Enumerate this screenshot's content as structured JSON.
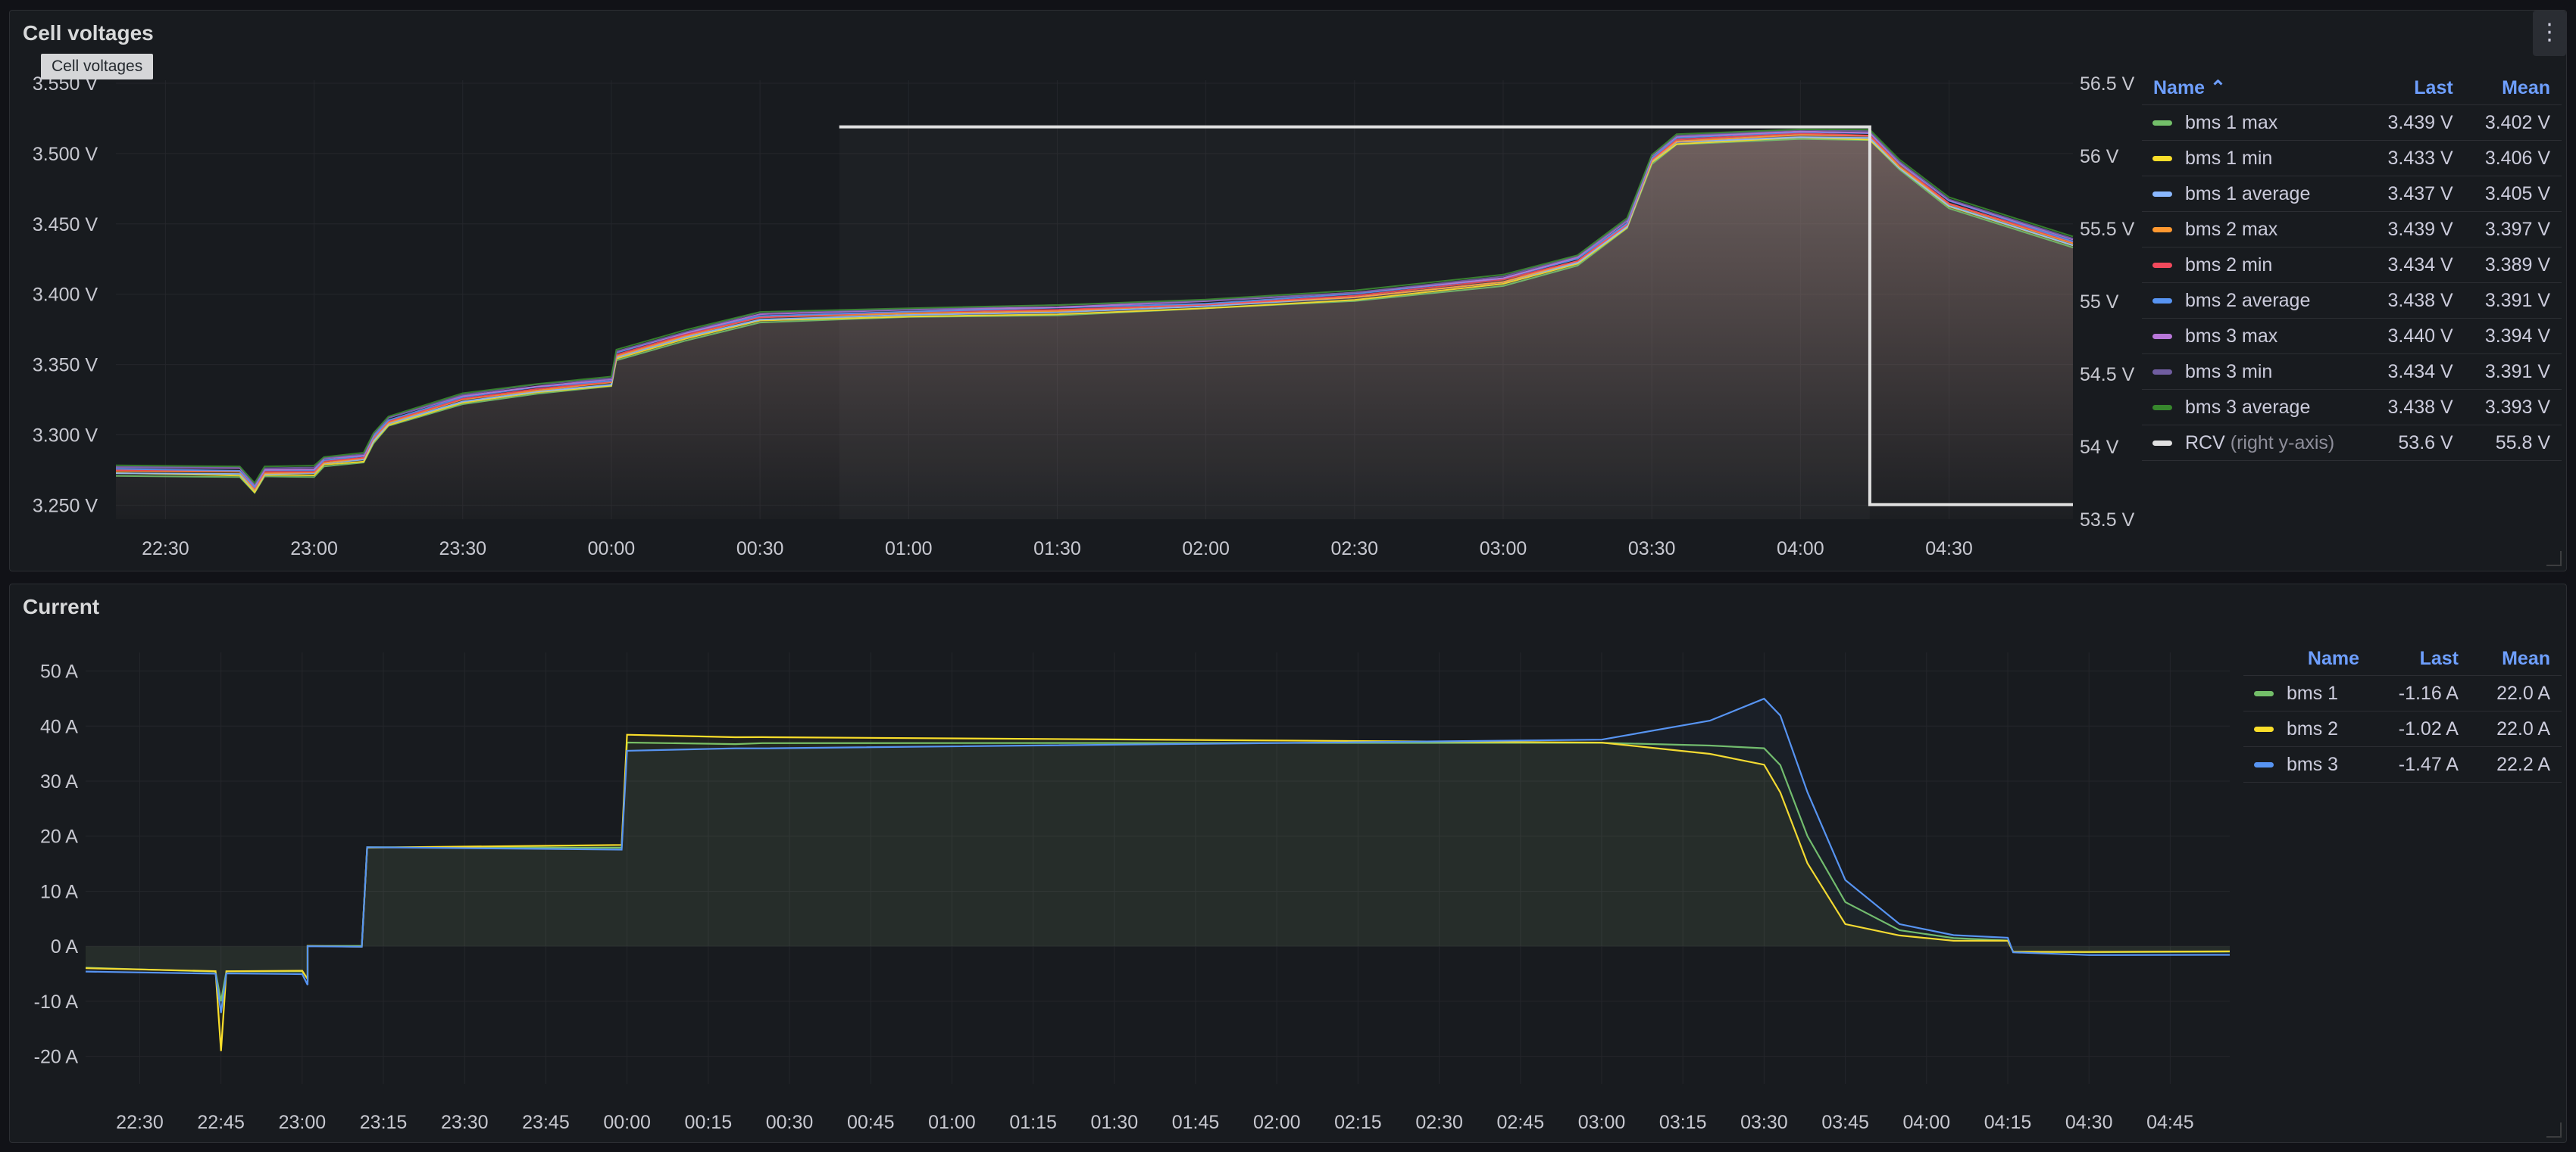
{
  "panels": {
    "voltage": {
      "title": "Cell voltages",
      "tooltip": "Cell voltages",
      "menu_icon": "vertical-dots-icon"
    },
    "current": {
      "title": "Current"
    }
  },
  "legend_voltage": {
    "headers": {
      "name": "Name ⌃",
      "last": "Last",
      "mean": "Mean"
    },
    "rows": [
      {
        "name": "bms 1 max",
        "last": "3.439 V",
        "mean": "3.402 V",
        "color": "#73bf69"
      },
      {
        "name": "bms 1 min",
        "last": "3.433 V",
        "mean": "3.406 V",
        "color": "#fade2a"
      },
      {
        "name": "bms 1 average",
        "last": "3.437 V",
        "mean": "3.405 V",
        "color": "#8ab8ff"
      },
      {
        "name": "bms 2 max",
        "last": "3.439 V",
        "mean": "3.397 V",
        "color": "#ff9830"
      },
      {
        "name": "bms 2 min",
        "last": "3.434 V",
        "mean": "3.389 V",
        "color": "#f2495c"
      },
      {
        "name": "bms 2 average",
        "last": "3.438 V",
        "mean": "3.391 V",
        "color": "#5794f2"
      },
      {
        "name": "bms 3 max",
        "last": "3.440 V",
        "mean": "3.394 V",
        "color": "#b877d9"
      },
      {
        "name": "bms 3 min",
        "last": "3.434 V",
        "mean": "3.391 V",
        "color": "#705da0"
      },
      {
        "name": "bms 3 average",
        "last": "3.438 V",
        "mean": "3.393 V",
        "color": "#37872d"
      },
      {
        "name": "RCV",
        "suffix": "(right y-axis)",
        "last": "53.6 V",
        "mean": "55.8 V",
        "color": "#e0e0e0"
      }
    ]
  },
  "legend_current": {
    "headers": {
      "name": "Name",
      "last": "Last",
      "mean": "Mean"
    },
    "rows": [
      {
        "name": "bms 1",
        "last": "-1.16 A",
        "mean": "22.0 A",
        "color": "#73bf69"
      },
      {
        "name": "bms 2",
        "last": "-1.02 A",
        "mean": "22.0 A",
        "color": "#fade2a"
      },
      {
        "name": "bms 3",
        "last": "-1.47 A",
        "mean": "22.2 A",
        "color": "#5794f2"
      }
    ]
  },
  "chart_data": [
    {
      "type": "line",
      "title": "Cell voltages",
      "xlabel": "",
      "ylabel": "",
      "x_ticks": [
        "22:30",
        "23:00",
        "23:30",
        "00:00",
        "00:30",
        "01:00",
        "01:30",
        "02:00",
        "02:30",
        "03:00",
        "03:30",
        "04:00",
        "04:30"
      ],
      "x_range": [
        "22:20",
        "04:55"
      ],
      "y_ticks": [
        "3.250 V",
        "3.300 V",
        "3.350 V",
        "3.400 V",
        "3.450 V",
        "3.500 V",
        "3.550 V"
      ],
      "ylim": [
        3.24,
        3.55
      ],
      "y2_ticks": [
        "53.5 V",
        "54 V",
        "54.5 V",
        "55 V",
        "55.5 V",
        "56 V",
        "56.5 V"
      ],
      "y2lim": [
        53.5,
        56.5
      ],
      "grid": true,
      "legend_position": "right",
      "x": [
        "22:20",
        "22:45",
        "22:48",
        "22:50",
        "23:00",
        "23:02",
        "23:10",
        "23:12",
        "23:15",
        "23:30",
        "23:45",
        "00:00",
        "00:01",
        "00:15",
        "00:30",
        "01:00",
        "01:30",
        "02:00",
        "02:30",
        "03:00",
        "03:15",
        "03:25",
        "03:30",
        "03:35",
        "04:00",
        "04:14",
        "04:20",
        "04:30",
        "04:55"
      ],
      "series": [
        {
          "name": "bms 1 average",
          "axis": "left",
          "values": [
            3.275,
            3.274,
            3.262,
            3.274,
            3.274,
            3.281,
            3.284,
            3.298,
            3.31,
            3.326,
            3.333,
            3.338,
            3.357,
            3.371,
            3.384,
            3.387,
            3.389,
            3.393,
            3.399,
            3.41,
            3.424,
            3.45,
            3.496,
            3.51,
            3.514,
            3.513,
            3.492,
            3.465,
            3.437
          ]
        },
        {
          "name": "RCV",
          "axis": "right",
          "x": [
            "00:46",
            "04:14",
            "04:14",
            "04:55"
          ],
          "values": [
            56.2,
            56.2,
            53.6,
            53.6
          ]
        }
      ]
    },
    {
      "type": "line",
      "title": "Current",
      "xlabel": "",
      "ylabel": "",
      "x_ticks": [
        "22:30",
        "22:45",
        "23:00",
        "23:15",
        "23:30",
        "23:45",
        "00:00",
        "00:15",
        "00:30",
        "00:45",
        "01:00",
        "01:15",
        "01:30",
        "01:45",
        "02:00",
        "02:15",
        "02:30",
        "02:45",
        "03:00",
        "03:15",
        "03:30",
        "03:45",
        "04:00",
        "04:15",
        "04:30",
        "04:45"
      ],
      "x_range": [
        "22:20",
        "04:56"
      ],
      "y_ticks": [
        "-20 A",
        "-10 A",
        "0 A",
        "10 A",
        "20 A",
        "30 A",
        "40 A",
        "50 A"
      ],
      "ylim": [
        -25,
        52
      ],
      "grid": true,
      "legend_position": "right",
      "x": [
        "22:20",
        "22:44",
        "22:45",
        "22:46",
        "23:00",
        "23:01",
        "23:01",
        "23:11",
        "23:12",
        "23:59",
        "24:00",
        "24:20",
        "24:25",
        "27:00",
        "27:20",
        "27:30",
        "27:33",
        "27:38",
        "27:45",
        "27:55",
        "28:05",
        "28:15",
        "28:16",
        "28:30",
        "28:56"
      ],
      "series": [
        {
          "name": "bms 1",
          "values": [
            -4,
            -4.5,
            -10,
            -4.5,
            -4.5,
            -6,
            0,
            0,
            18,
            18,
            37,
            36.8,
            37,
            37,
            36.5,
            36,
            33,
            20,
            8,
            3,
            1.5,
            1,
            -1,
            -1,
            -1
          ]
        },
        {
          "name": "bms 2",
          "values": [
            -4,
            -4.5,
            -19,
            -4.5,
            -4.5,
            -6,
            0,
            0,
            18,
            18.5,
            38.5,
            38,
            38,
            37,
            35,
            33,
            28,
            15,
            4,
            2,
            1,
            1,
            -1,
            -1,
            -1
          ]
        },
        {
          "name": "bms 3",
          "values": [
            -4.5,
            -5,
            -12,
            -5,
            -5,
            -7,
            0,
            0,
            18,
            17.5,
            35.5,
            36,
            36,
            37.5,
            41,
            45,
            42,
            28,
            12,
            4,
            2,
            1.5,
            -1,
            -1.5,
            -1.5
          ]
        }
      ]
    }
  ]
}
